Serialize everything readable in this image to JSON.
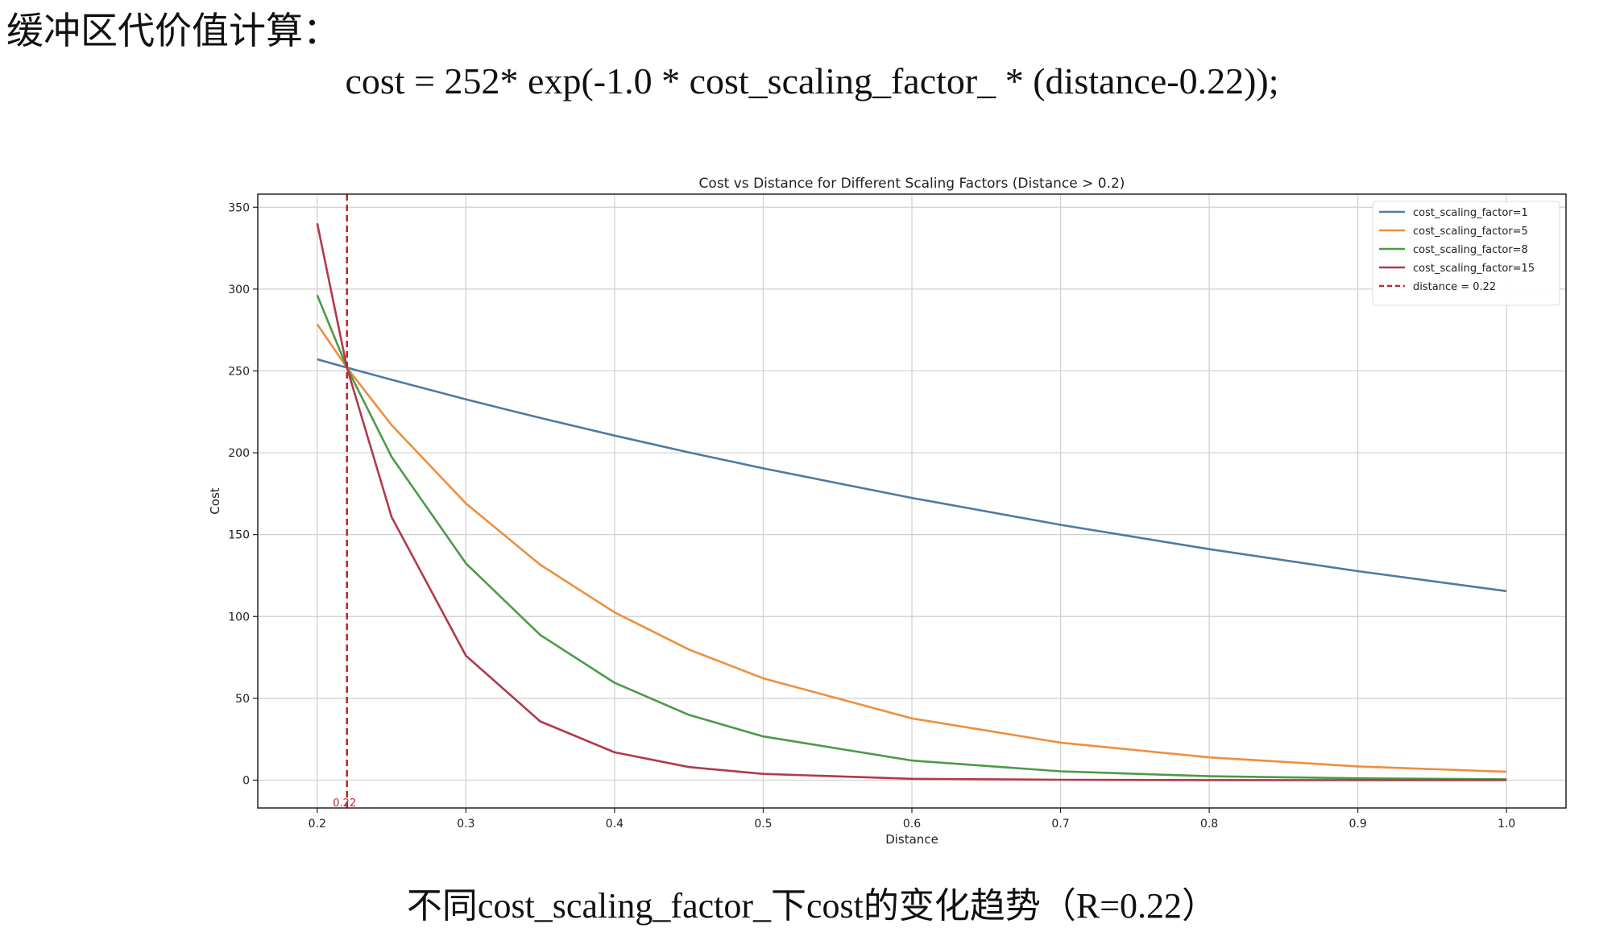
{
  "slide": {
    "heading": "缓冲区代价值计算：",
    "formula": "cost = 252* exp(-1.0 * cost_scaling_factor_ * (distance-0.22));",
    "caption": "不同cost_scaling_factor_下cost的变化趋势（R=0.22）"
  },
  "chart_data": {
    "type": "line",
    "title": "Cost vs Distance for Different Scaling Factors (Distance > 0.2)",
    "xlabel": "Distance",
    "ylabel": "Cost",
    "xlim": [
      0.16,
      1.04
    ],
    "ylim": [
      -17,
      358
    ],
    "xticks": [
      0.2,
      0.3,
      0.4,
      0.5,
      0.6,
      0.7,
      0.8,
      0.9,
      1.0
    ],
    "xtick_labels": [
      "0.2",
      "0.3",
      "0.4",
      "0.5",
      "0.6",
      "0.7",
      "0.8",
      "0.9",
      "1.0"
    ],
    "yticks": [
      0,
      50,
      100,
      150,
      200,
      250,
      300,
      350
    ],
    "ytick_labels": [
      "0",
      "50",
      "100",
      "150",
      "200",
      "250",
      "300",
      "350"
    ],
    "grid": true,
    "legend_position": "top-right",
    "x": [
      0.2,
      0.22,
      0.25,
      0.3,
      0.35,
      0.4,
      0.45,
      0.5,
      0.6,
      0.7,
      0.8,
      0.9,
      1.0
    ],
    "series": [
      {
        "name": "cost_scaling_factor=1",
        "color": "#4f7aa2",
        "values": [
          257.1,
          252.0,
          244.6,
          232.6,
          221.3,
          210.5,
          200.2,
          190.5,
          172.4,
          156.0,
          141.1,
          127.7,
          115.5
        ]
      },
      {
        "name": "cost_scaling_factor=5",
        "color": "#ed8f3d",
        "values": [
          278.5,
          252.0,
          216.9,
          169.0,
          131.6,
          102.5,
          79.8,
          62.2,
          37.7,
          22.9,
          13.9,
          8.4,
          5.1
        ]
      },
      {
        "name": "cost_scaling_factor=8",
        "color": "#4c9a48",
        "values": [
          296.3,
          252.0,
          197.5,
          132.4,
          88.7,
          59.5,
          39.9,
          26.7,
          12.0,
          5.4,
          2.4,
          1.1,
          0.5
        ]
      },
      {
        "name": "cost_scaling_factor=15",
        "color": "#b03a4b",
        "values": [
          340.2,
          252.0,
          160.8,
          76.0,
          35.9,
          17.0,
          8.0,
          3.8,
          0.8,
          0.2,
          0.04,
          0.01,
          0.0
        ]
      }
    ],
    "reference_line": {
      "name": "distance = 0.22",
      "x": 0.22,
      "color": "#c4262e",
      "label": "0.22"
    }
  }
}
